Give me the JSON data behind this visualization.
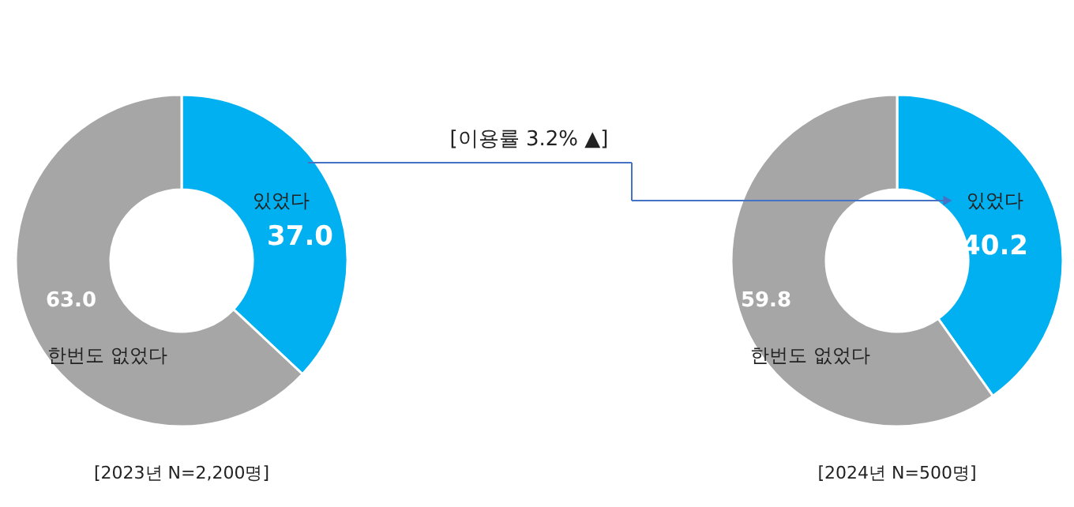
{
  "chart_data": [
    {
      "type": "donut",
      "title": "[2023년 N=2,200명]",
      "categories": [
        "있었다",
        "한번도 없었다"
      ],
      "values": [
        37.0,
        63.0
      ],
      "colors": [
        "#00b0f0",
        "#a6a6a6"
      ],
      "value_labels": [
        "37.0",
        "63.0"
      ],
      "annotations": [
        "[이용률 3.2% ▲]"
      ]
    },
    {
      "type": "donut",
      "title": "[2024년 N=500명]",
      "categories": [
        "있었다",
        "한번도 없었다"
      ],
      "values": [
        40.2,
        59.8
      ],
      "colors": [
        "#00b0f0",
        "#a6a6a6"
      ],
      "value_labels": [
        "40.2",
        "59.8"
      ]
    }
  ]
}
